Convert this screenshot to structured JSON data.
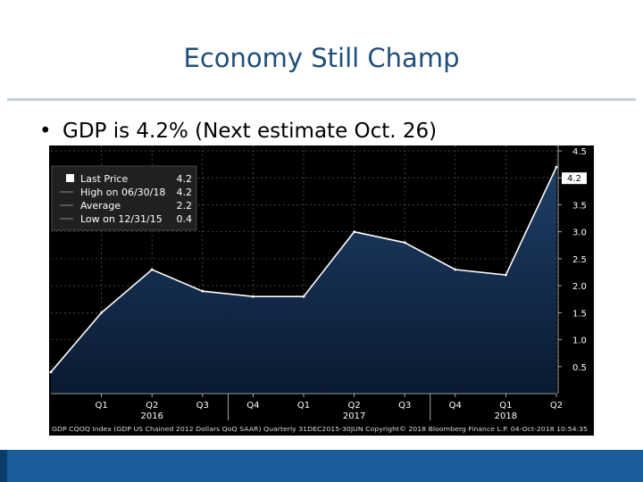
{
  "slide": {
    "title": "Economy Still Champ",
    "bullet": "GDP is 4.2% (Next estimate Oct. 26)",
    "bullet_marker": "•",
    "colors": {
      "title": "#1f4e79",
      "rule": "#c3cfdc",
      "band": "#1a5f9c"
    }
  },
  "chart_data": {
    "type": "area",
    "x": [
      "Q4 2015",
      "Q1 2016",
      "Q2 2016",
      "Q3 2016",
      "Q4 2016",
      "Q1 2017",
      "Q2 2017",
      "Q3 2017",
      "Q4 2017",
      "Q1 2018",
      "Q2 2018"
    ],
    "series": [
      {
        "values": [
          0.4,
          1.5,
          2.3,
          1.9,
          1.8,
          1.8,
          3.0,
          2.8,
          2.3,
          2.2,
          4.2
        ]
      }
    ],
    "x_tick_labels": [
      "Q1",
      "Q2",
      "Q3",
      "Q4",
      "Q1",
      "Q2",
      "Q3",
      "Q4",
      "Q1",
      "Q2"
    ],
    "year_labels": [
      "2016",
      "2017",
      "2018"
    ],
    "y_ticks": [
      "0.5",
      "1.0",
      "1.5",
      "2.0",
      "2.5",
      "3.0",
      "3.5",
      "4.0",
      "4.5"
    ],
    "ylim": [
      0,
      4.6
    ],
    "last_value_tag": "4.2",
    "legend": {
      "placement": "top-left",
      "rows": [
        {
          "label": "Last Price",
          "value": "4.2"
        },
        {
          "label": "High on 06/30/18",
          "value": "4.2"
        },
        {
          "label": "Average",
          "value": "2.2"
        },
        {
          "label": "Low on 12/31/15",
          "value": "0.4"
        }
      ]
    },
    "footer": "GDP CQOQ Index (GDP US Chained 2012 Dollars QoQ SAAR) Quarterly 31DEC2015-30JUN  Copyright© 2018 Bloomberg Finance L.P.  04-Oct-2018 10:54:35",
    "grid": true,
    "colors": {
      "background": "#000000",
      "fill_top": "#1e3f68",
      "fill_bottom": "#0a1930",
      "line": "#ffffff",
      "axis_text": "#ffffff",
      "grid": "#5a5a5a"
    }
  }
}
